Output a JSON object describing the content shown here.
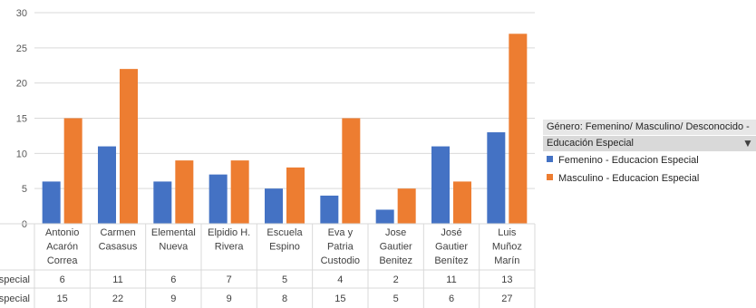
{
  "chart_data": {
    "type": "bar",
    "categories": [
      [
        "Antonio",
        "Acarón",
        "Correa"
      ],
      [
        "Carmen",
        "Casasus"
      ],
      [
        "Elemental",
        "Nueva"
      ],
      [
        "Elpidio H.",
        "Rivera"
      ],
      [
        "Escuela",
        "Espino"
      ],
      [
        "Eva y",
        "Patria",
        "Custodio"
      ],
      [
        "Jose",
        "Gautier",
        "Benitez"
      ],
      [
        "José",
        "Gautier",
        "Benítez"
      ],
      [
        "Luis",
        "Muñoz",
        "Marín"
      ]
    ],
    "series": [
      {
        "name": "Femenino - Educacion Especial",
        "table_label": "especial",
        "color": "#4472c4",
        "values": [
          6,
          11,
          6,
          7,
          5,
          4,
          2,
          11,
          13
        ]
      },
      {
        "name": "Masculino - Educacion Especial",
        "table_label": "Especial",
        "color": "#ed7d31",
        "values": [
          15,
          22,
          9,
          9,
          8,
          15,
          5,
          6,
          27
        ]
      }
    ],
    "ylim": [
      0,
      30
    ],
    "yticks": [
      0,
      5,
      10,
      15,
      20,
      25,
      30
    ],
    "grid": true,
    "legend_position": "right"
  },
  "legend": {
    "header_line1": "Género: Femenino/ Masculino/ Desconocido  -",
    "header_line2": "Educación Especial",
    "filter_icon": "filter-icon"
  }
}
